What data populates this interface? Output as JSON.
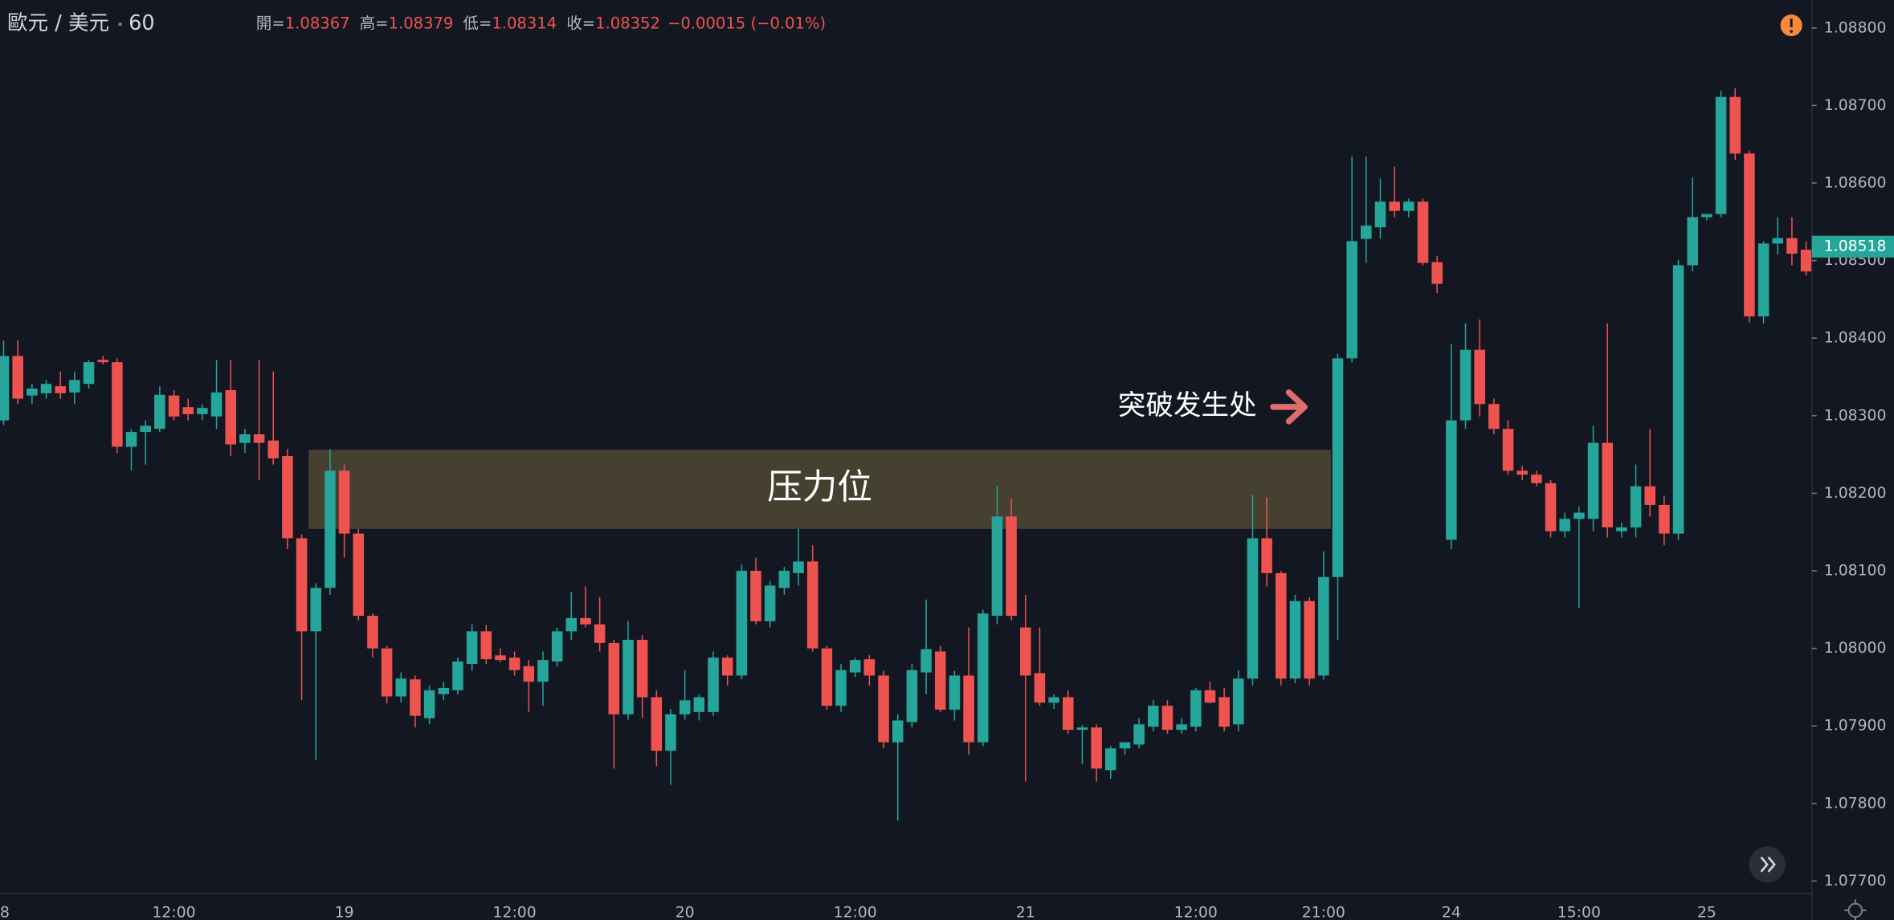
{
  "chart_data": {
    "type": "candlestick",
    "symbol": "歐元 / 美元",
    "interval": "60",
    "ohlc_legend": [
      {
        "label": "開=",
        "value": 1.08367
      },
      {
        "label": "高=",
        "value": 1.08379
      },
      {
        "label": "低=",
        "value": 1.08314
      },
      {
        "label": "收=",
        "value": 1.08352
      }
    ],
    "change": "−0.00015 (−0.01%)",
    "last_price": 1.08518,
    "up_color": "#26a69a",
    "down_color": "#ef5350",
    "ylim": [
      1.07684,
      1.08836
    ],
    "yticks": [
      {
        "value": 1.077,
        "label": "1.07700"
      },
      {
        "value": 1.078,
        "label": "1.07800"
      },
      {
        "value": 1.079,
        "label": "1.07900"
      },
      {
        "value": 1.08,
        "label": "1.08000"
      },
      {
        "value": 1.081,
        "label": "1.08100"
      },
      {
        "value": 1.082,
        "label": "1.08200"
      },
      {
        "value": 1.083,
        "label": "1.08300"
      },
      {
        "value": 1.084,
        "label": "1.08400"
      },
      {
        "value": 1.085,
        "label": "1.08500"
      },
      {
        "value": 1.086,
        "label": "1.08600"
      },
      {
        "value": 1.087,
        "label": "1.08700"
      },
      {
        "value": 1.088,
        "label": "1.08800"
      }
    ],
    "zone": {
      "label": "压力位",
      "low": 1.08154,
      "high": 1.08256,
      "color": "#8a7a45"
    },
    "annotation": "突破发生处",
    "categories": [
      "8",
      null,
      null,
      null,
      null,
      null,
      null,
      null,
      null,
      null,
      null,
      null,
      "12:00",
      null,
      null,
      null,
      null,
      null,
      null,
      null,
      null,
      null,
      null,
      null,
      "19",
      null,
      null,
      null,
      null,
      null,
      null,
      null,
      null,
      null,
      null,
      null,
      "12:00",
      null,
      null,
      null,
      null,
      null,
      null,
      null,
      null,
      null,
      null,
      null,
      "20",
      null,
      null,
      null,
      null,
      null,
      null,
      null,
      null,
      null,
      null,
      null,
      "12:00",
      null,
      null,
      null,
      null,
      null,
      null,
      null,
      null,
      null,
      null,
      null,
      "21",
      null,
      null,
      null,
      null,
      null,
      null,
      null,
      null,
      null,
      null,
      null,
      "12:00",
      null,
      null,
      null,
      null,
      null,
      null,
      null,
      null,
      "21:00",
      null,
      null,
      null,
      null,
      null,
      null,
      null,
      null,
      "24",
      null,
      null,
      null,
      null,
      null,
      null,
      null,
      null,
      "15:00",
      null,
      null,
      null,
      null,
      null,
      null,
      null,
      null,
      "25",
      null,
      null,
      null,
      null,
      null,
      null,
      null
    ],
    "open": [
      1.08294,
      1.08377,
      1.08326,
      1.08329,
      1.08338,
      1.0833,
      1.08341,
      1.08372,
      1.08369,
      1.0826,
      1.08279,
      1.08283,
      1.08326,
      1.08311,
      1.08302,
      1.08299,
      1.08333,
      1.08265,
      1.08276,
      1.08268,
      1.08248,
      1.08142,
      1.08022,
      1.08078,
      1.08229,
      1.08148,
      1.08042,
      1.08,
      1.07938,
      1.0796,
      1.0791,
      1.07941,
      1.07946,
      1.0798,
      1.08022,
      1.07991,
      1.07988,
      1.07977,
      1.07957,
      1.07983,
      1.08022,
      1.08039,
      1.08031,
      1.08007,
      1.07915,
      1.08011,
      1.07937,
      1.07868,
      1.07915,
      1.07918,
      1.07918,
      1.07988,
      1.07965,
      1.081,
      1.08035,
      1.08078,
      1.08097,
      1.08112,
      1.08,
      1.07926,
      1.07969,
      1.07986,
      1.07965,
      1.07879,
      1.07905,
      1.07969,
      1.07996,
      1.07921,
      1.07965,
      1.07879,
      1.08042,
      1.0817,
      1.08027,
      1.07968,
      1.0793,
      1.07937,
      1.07895,
      1.07898,
      1.07843,
      1.07871,
      1.07876,
      1.07899,
      1.07926,
      1.07895,
      1.07899,
      1.07946,
      1.07937,
      1.07902,
      1.07961,
      1.08142,
      1.08097,
      1.07961,
      1.08061,
      1.07965,
      1.08092,
      1.08374,
      1.08528,
      1.08543,
      1.08576,
      1.08564,
      1.08576,
      1.08498,
      1.0814,
      1.08294,
      1.08385,
      1.08315,
      1.08283,
      1.08229,
      1.08224,
      1.08213,
      1.08151,
      1.08167,
      1.08167,
      1.08265,
      1.08151,
      1.08156,
      1.08209,
      1.08185,
      1.08148,
      1.08494,
      1.08556,
      1.0856,
      1.08711,
      1.08638,
      1.08428,
      1.08522,
      1.08529,
      1.08514
    ],
    "high": [
      1.08397,
      1.08397,
      1.08341,
      1.08346,
      1.08357,
      1.08357,
      1.08372,
      1.08377,
      1.08374,
      1.08283,
      1.08294,
      1.08338,
      1.08333,
      1.08322,
      1.08315,
      1.08372,
      1.08372,
      1.08283,
      1.08372,
      1.08357,
      1.08257,
      1.08147,
      1.08084,
      1.08257,
      1.08237,
      1.08154,
      1.08045,
      1.08003,
      1.07969,
      1.07965,
      1.07952,
      1.07957,
      1.07988,
      1.08031,
      1.0803,
      1.08,
      1.07996,
      1.07985,
      1.07996,
      1.08027,
      1.08073,
      1.0808,
      1.08066,
      1.08011,
      1.08035,
      1.08017,
      1.07946,
      1.07922,
      1.07972,
      1.07941,
      1.07996,
      1.07991,
      1.08108,
      1.08117,
      1.08087,
      1.08105,
      1.08154,
      1.08133,
      1.08003,
      1.0798,
      1.07988,
      1.07991,
      1.07971,
      1.07915,
      1.0798,
      1.08063,
      1.08003,
      1.07971,
      1.08027,
      1.0805,
      1.08209,
      1.08193,
      1.08069,
      1.08027,
      1.07941,
      1.07946,
      1.07901,
      1.07902,
      1.07874,
      1.07879,
      1.0791,
      1.07933,
      1.07933,
      1.0791,
      1.07949,
      1.07957,
      1.07949,
      1.07972,
      1.08198,
      1.08195,
      1.081,
      1.08069,
      1.08066,
      1.08125,
      1.0838,
      1.08634,
      1.08634,
      1.08606,
      1.08621,
      1.0858,
      1.0858,
      1.08506,
      1.08392,
      1.08419,
      1.08424,
      1.08322,
      1.08294,
      1.08235,
      1.08229,
      1.08217,
      1.08175,
      1.08183,
      1.08287,
      1.08419,
      1.08162,
      1.08237,
      1.08283,
      1.08197,
      1.08501,
      1.08607,
      1.0856,
      1.08719,
      1.08722,
      1.08642,
      1.08525,
      1.08556,
      1.08556,
      1.08525
    ],
    "low": [
      1.08288,
      1.08315,
      1.08315,
      1.08322,
      1.08322,
      1.08315,
      1.08335,
      1.08366,
      1.08252,
      1.08229,
      1.08237,
      1.08279,
      1.08294,
      1.08294,
      1.08294,
      1.08283,
      1.08248,
      1.08252,
      1.08217,
      1.08237,
      1.08128,
      1.07933,
      1.07856,
      1.08069,
      1.08117,
      1.08036,
      1.07988,
      1.07929,
      1.0793,
      1.07898,
      1.07902,
      1.07933,
      1.07941,
      1.07971,
      1.0798,
      1.07982,
      1.07965,
      1.07918,
      1.07926,
      1.07977,
      1.08011,
      1.08027,
      1.07996,
      1.07845,
      1.07908,
      1.0791,
      1.07848,
      1.07824,
      1.07908,
      1.07907,
      1.07913,
      1.07952,
      1.0796,
      1.08031,
      1.08027,
      1.08069,
      1.08081,
      1.07996,
      1.07921,
      1.07918,
      1.07963,
      1.07952,
      1.07871,
      1.07778,
      1.07898,
      1.07941,
      1.07918,
      1.07907,
      1.07863,
      1.07874,
      1.08031,
      1.08036,
      1.07828,
      1.07926,
      1.07922,
      1.0789,
      1.07851,
      1.07828,
      1.07832,
      1.07863,
      1.07871,
      1.07893,
      1.0789,
      1.0789,
      1.07893,
      1.07929,
      1.07893,
      1.07893,
      1.07952,
      1.0808,
      1.07952,
      1.07955,
      1.07952,
      1.0796,
      1.08011,
      1.08369,
      1.08497,
      1.08528,
      1.08556,
      1.08556,
      1.08494,
      1.08458,
      1.08128,
      1.08283,
      1.08299,
      1.08276,
      1.08224,
      1.08217,
      1.08209,
      1.08143,
      1.08143,
      1.08052,
      1.08151,
      1.08143,
      1.08143,
      1.08143,
      1.0817,
      1.08133,
      1.0814,
      1.08486,
      1.08552,
      1.08556,
      1.0863,
      1.0842,
      1.08419,
      1.08508,
      1.08494,
      1.08481
    ],
    "close": [
      1.08377,
      1.08322,
      1.08335,
      1.08341,
      1.08329,
      1.08346,
      1.08369,
      1.08369,
      1.0826,
      1.08279,
      1.08287,
      1.08327,
      1.08299,
      1.08302,
      1.0831,
      1.0833,
      1.08263,
      1.08276,
      1.08265,
      1.08245,
      1.08142,
      1.08022,
      1.08078,
      1.08229,
      1.08148,
      1.08042,
      1.08,
      1.07938,
      1.07961,
      1.07913,
      1.07946,
      1.07949,
      1.07983,
      1.08022,
      1.07986,
      1.07985,
      1.07972,
      1.07957,
      1.07985,
      1.08022,
      1.08039,
      1.08031,
      1.08007,
      1.07915,
      1.08011,
      1.07937,
      1.07868,
      1.07915,
      1.07933,
      1.07937,
      1.07988,
      1.07965,
      1.081,
      1.08035,
      1.08081,
      1.081,
      1.08112,
      1.08,
      1.07926,
      1.07972,
      1.07985,
      1.07965,
      1.07879,
      1.07907,
      1.07972,
      1.07999,
      1.07921,
      1.07965,
      1.07879,
      1.08045,
      1.0817,
      1.08042,
      1.07965,
      1.0793,
      1.07937,
      1.07895,
      1.07898,
      1.07845,
      1.07871,
      1.07879,
      1.07902,
      1.07926,
      1.07895,
      1.07902,
      1.07946,
      1.0793,
      1.07899,
      1.07961,
      1.08142,
      1.08097,
      1.07961,
      1.08061,
      1.07961,
      1.08092,
      1.08374,
      1.08525,
      1.08545,
      1.08576,
      1.08564,
      1.08576,
      1.08497,
      1.0847,
      1.08294,
      1.08385,
      1.08315,
      1.08283,
      1.08229,
      1.08224,
      1.08213,
      1.08151,
      1.08167,
      1.08175,
      1.08265,
      1.08156,
      1.08156,
      1.08209,
      1.08185,
      1.08148,
      1.08494,
      1.08556,
      1.0856,
      1.08711,
      1.08638,
      1.08428,
      1.08522,
      1.08529,
      1.08509,
      1.08486
    ]
  }
}
